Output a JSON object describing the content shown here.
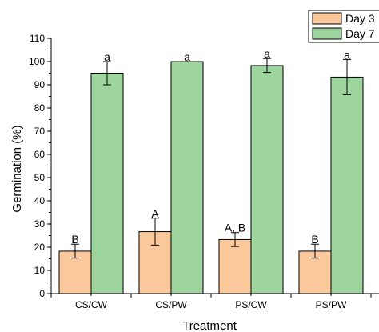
{
  "chart_data": {
    "type": "bar",
    "title": "",
    "xlabel": "Treatment",
    "ylabel": "Germination (%)",
    "ylim": [
      0,
      110
    ],
    "yticks": [
      0,
      10,
      20,
      30,
      40,
      50,
      60,
      70,
      80,
      90,
      100,
      110
    ],
    "categories": [
      "CS/CW",
      "CS/PW",
      "PS/CW",
      "PS/PW"
    ],
    "series": [
      {
        "name": "Day 3",
        "color": "#fbc89b",
        "values": [
          18.3,
          26.7,
          23.3,
          18.3
        ],
        "errors": [
          3.0,
          5.8,
          3.0,
          3.0
        ],
        "labels": [
          "B",
          "A",
          "A, B",
          "B"
        ]
      },
      {
        "name": "Day 7",
        "color": "#9ed49d",
        "values": [
          95.0,
          100.0,
          98.3,
          93.3
        ],
        "errors": [
          5.0,
          0,
          3.0,
          7.6
        ],
        "labels": [
          "a",
          "a",
          "a",
          "a"
        ]
      }
    ],
    "legend_position": "top-right",
    "grid": false
  }
}
